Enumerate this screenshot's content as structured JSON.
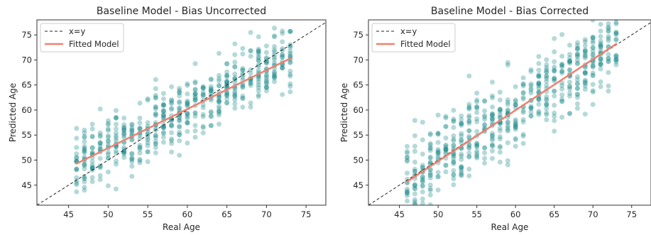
{
  "colors": {
    "scatter": "#1a8a8a",
    "fit": "#f08070",
    "identity": "#222222"
  },
  "chart_data": [
    {
      "type": "scatter",
      "title": "Baseline Model - Bias Uncorrected",
      "xlabel": "Real Age",
      "ylabel": "Predicted Age",
      "xlim": [
        41,
        77.5
      ],
      "ylim": [
        41,
        78
      ],
      "xticks": [
        "45",
        "50",
        "55",
        "60",
        "65",
        "70",
        "75"
      ],
      "yticks": [
        "45",
        "50",
        "55",
        "60",
        "65",
        "70",
        "75"
      ],
      "legend": {
        "placement": "top-left",
        "entries": [
          "x=y",
          "Fitted Model"
        ]
      },
      "identity_line": {
        "name": "x=y",
        "points": [
          [
            41,
            41
          ],
          [
            77.5,
            77.5
          ]
        ]
      },
      "fit_line": {
        "name": "Fitted Model",
        "points": [
          [
            46,
            49.3
          ],
          [
            73,
            70.3
          ]
        ]
      },
      "scatter_model": {
        "slope": 0.78,
        "intercept": 13.4,
        "noise": 3.2,
        "x_min": 46,
        "x_max": 73,
        "seed": 7
      }
    },
    {
      "type": "scatter",
      "title": "Baseline Model - Bias Corrected",
      "xlabel": "Real Age",
      "ylabel": "Predicted Age",
      "xlim": [
        41,
        77.5
      ],
      "ylim": [
        41,
        78
      ],
      "xticks": [
        "45",
        "50",
        "55",
        "60",
        "65",
        "70",
        "75"
      ],
      "yticks": [
        "45",
        "50",
        "55",
        "60",
        "65",
        "70",
        "75"
      ],
      "legend": {
        "placement": "top-left",
        "entries": [
          "x=y",
          "Fitted Model"
        ]
      },
      "identity_line": {
        "name": "x=y",
        "points": [
          [
            41,
            41
          ],
          [
            77.5,
            77.5
          ]
        ]
      },
      "fit_line": {
        "name": "Fitted Model",
        "points": [
          [
            46,
            45.7
          ],
          [
            73,
            73.2
          ]
        ]
      },
      "scatter_model": {
        "slope": 1.0,
        "intercept": 0.0,
        "noise": 4.0,
        "x_min": 46,
        "x_max": 73,
        "seed": 19
      }
    }
  ]
}
